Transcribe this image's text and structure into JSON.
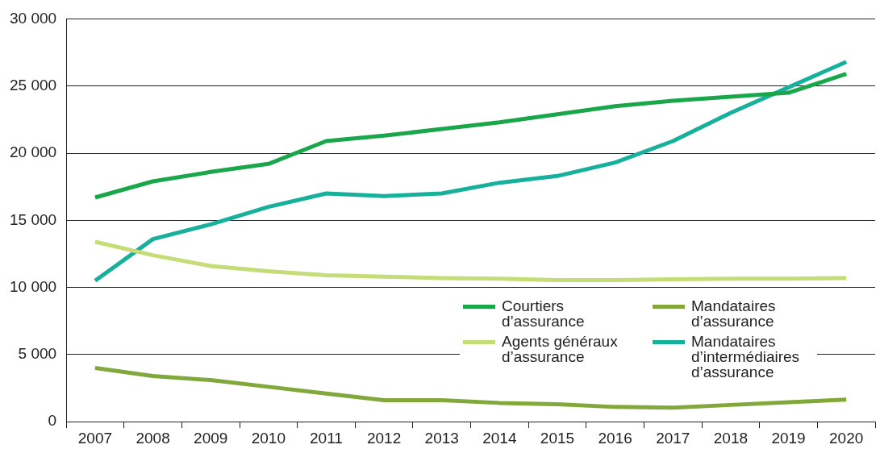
{
  "chart_data": {
    "type": "line",
    "categories": [
      "2007",
      "2008",
      "2009",
      "2010",
      "2011",
      "2012",
      "2013",
      "2014",
      "2015",
      "2016",
      "2017",
      "2018",
      "2019",
      "2020"
    ],
    "series": [
      {
        "name": "Courtiers d’assurance",
        "color": "#1aa64a",
        "values": [
          16700,
          17900,
          18600,
          19200,
          20900,
          21300,
          21800,
          22300,
          22900,
          23500,
          23900,
          24200,
          24500,
          25900
        ]
      },
      {
        "name": "Mandataires d’assurance",
        "color": "#82a83c",
        "values": [
          4000,
          3400,
          3100,
          2600,
          2100,
          1600,
          1600,
          1400,
          1300,
          1100,
          1050,
          1250,
          1450,
          1650
        ]
      },
      {
        "name": "Agents généraux d’assurance",
        "color": "#c5dc78",
        "values": [
          13400,
          12400,
          11600,
          11200,
          10900,
          10800,
          10700,
          10650,
          10550,
          10550,
          10600,
          10650,
          10650,
          10700
        ]
      },
      {
        "name": "Mandataires d’intermédiaires d’assurance",
        "color": "#17b09a",
        "values": [
          10500,
          13600,
          14700,
          16000,
          17000,
          16800,
          17000,
          17800,
          18300,
          19300,
          20900,
          23000,
          24900,
          26800
        ]
      }
    ],
    "ylim": [
      0,
      30000
    ],
    "yticks": [
      {
        "value": 0,
        "label": "0"
      },
      {
        "value": 5000,
        "label": "5 000"
      },
      {
        "value": 10000,
        "label": "10 000"
      },
      {
        "value": 15000,
        "label": "15 000"
      },
      {
        "value": 20000,
        "label": "20 000"
      },
      {
        "value": 25000,
        "label": "25 000"
      },
      {
        "value": 30000,
        "label": "30 000"
      }
    ],
    "grid": "y",
    "legend": "bottom right",
    "marker": "none",
    "line_style": "solid"
  }
}
